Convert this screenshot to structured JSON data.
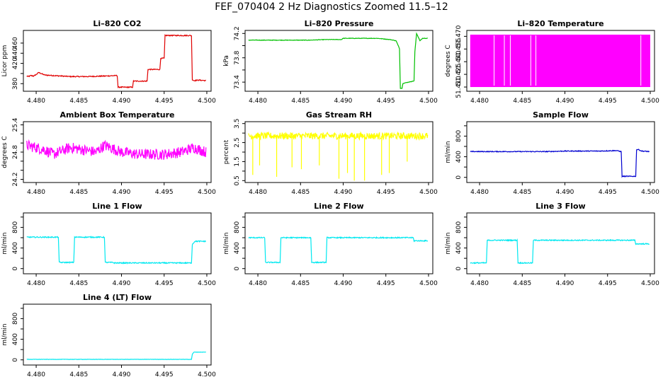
{
  "page_title": "FEF_070404  2 Hz Diagnostics Zoomed 11.5–12",
  "chart_data": [
    {
      "type": "line",
      "title": "Li–820 CO2",
      "ylabel": "Licor ppm",
      "color": "#e00000",
      "xlim": [
        4.4785,
        4.5005
      ],
      "ylim": [
        365,
        485
      ],
      "xticks": [
        4.48,
        4.485,
        4.49,
        4.495,
        4.5
      ],
      "xtick_labels": [
        "4.480",
        "4.485",
        "4.490",
        "4.495",
        "4.500"
      ],
      "yticks": [
        380,
        400,
        420,
        440,
        460
      ],
      "ytick_labels": [
        "380",
        "",
        "420",
        "440",
        "460"
      ],
      "noise": 1,
      "series": [
        {
          "name": "CO2",
          "x": [
            4.4789,
            4.4791,
            4.4794,
            4.4797,
            4.48,
            4.4803,
            4.481,
            4.482,
            4.484,
            4.486,
            4.488,
            4.4895,
            4.4896,
            4.4913,
            4.4914,
            4.493,
            4.4931,
            4.4945,
            4.4946,
            4.495,
            4.4951,
            4.4982,
            4.4983,
            4.4985,
            4.499,
            4.4999
          ],
          "y": [
            395,
            394,
            396,
            395,
            398,
            402,
            397,
            396,
            394,
            394,
            395,
            396,
            373,
            373,
            385,
            385,
            408,
            408,
            430,
            430,
            475,
            475,
            388,
            386,
            387,
            386
          ]
        }
      ]
    },
    {
      "type": "line",
      "title": "Li–820 Pressure",
      "ylabel": "kPa",
      "color": "#00c000",
      "xlim": [
        4.4785,
        4.5005
      ],
      "ylim": [
        73.25,
        74.25
      ],
      "xticks": [
        4.48,
        4.485,
        4.49,
        4.495,
        4.5
      ],
      "xtick_labels": [
        "4.480",
        "4.485",
        "4.490",
        "4.495",
        "4.500"
      ],
      "yticks": [
        73.4,
        73.6,
        73.8,
        74.0,
        74.2
      ],
      "ytick_labels": [
        "73.4",
        "",
        "73.8",
        "",
        "74.2"
      ],
      "noise": 0.004,
      "series": [
        {
          "name": "Pressure",
          "x": [
            4.4789,
            4.48,
            4.482,
            4.486,
            4.488,
            4.4898,
            4.49,
            4.492,
            4.494,
            4.4955,
            4.4962,
            4.4966,
            4.4967,
            4.4969,
            4.497,
            4.4983,
            4.4984,
            4.4986,
            4.499,
            4.4993,
            4.4999
          ],
          "y": [
            74.09,
            74.09,
            74.09,
            74.09,
            74.1,
            74.1,
            74.12,
            74.12,
            74.12,
            74.1,
            74.08,
            73.95,
            73.3,
            73.3,
            73.38,
            73.42,
            73.9,
            74.2,
            74.08,
            74.12,
            74.12
          ]
        }
      ]
    },
    {
      "type": "area",
      "title": "Li–820 Temperature",
      "ylabel": "degrees C",
      "color": "#ff00ff",
      "xlim": [
        4.4785,
        4.5005
      ],
      "ylim": [
        51.405,
        51.477
      ],
      "xticks": [
        4.48,
        4.485,
        4.49,
        4.495,
        4.5
      ],
      "xtick_labels": [
        "4.480",
        "4.485",
        "4.490",
        "4.495",
        "4.500"
      ],
      "yticks": [
        51.41,
        51.425,
        51.44,
        51.455,
        51.47
      ],
      "ytick_labels": [
        "51.410",
        "51.425",
        "51.440",
        "51.455",
        "51.470"
      ],
      "series": [
        {
          "name": "Temperature",
          "x": [
            4.4789,
            4.5
          ],
          "y_low": 51.41,
          "y_high": 51.472,
          "dropouts": [
            4.4817,
            4.4829,
            4.4836,
            4.486,
            4.4866,
            4.4989
          ]
        }
      ]
    },
    {
      "type": "line",
      "title": "Ambient Box Temperature",
      "ylabel": "degrees C",
      "color": "#ff00ff",
      "xlim": [
        4.4785,
        4.5005
      ],
      "ylim": [
        24.13,
        25.47
      ],
      "xticks": [
        4.48,
        4.485,
        4.49,
        4.495,
        4.5
      ],
      "xtick_labels": [
        "4.480",
        "4.485",
        "4.490",
        "4.495",
        "4.500"
      ],
      "yticks": [
        24.2,
        24.4,
        24.6,
        24.8,
        25.0,
        25.2,
        25.4
      ],
      "ytick_labels": [
        "24.2",
        "",
        "",
        "24.8",
        "",
        "",
        "25.4"
      ],
      "noise": 0.12,
      "series": [
        {
          "name": "Ambient",
          "x": [
            4.4789,
            4.48,
            4.481,
            4.482,
            4.484,
            4.487,
            4.488,
            4.49,
            4.492,
            4.495,
            4.497,
            4.4985,
            4.4999
          ],
          "y": [
            24.95,
            24.9,
            24.85,
            24.75,
            24.9,
            24.8,
            24.95,
            24.8,
            24.75,
            24.75,
            24.8,
            24.9,
            24.8
          ]
        }
      ]
    },
    {
      "type": "line",
      "title": "Gas Stream RH",
      "ylabel": "percent",
      "color": "#ffff00",
      "xlim": [
        4.4785,
        4.5005
      ],
      "ylim": [
        0.4,
        3.6
      ],
      "xticks": [
        4.48,
        4.485,
        4.49,
        4.495,
        4.5
      ],
      "xtick_labels": [
        "4.480",
        "4.485",
        "4.490",
        "4.495",
        "4.500"
      ],
      "yticks": [
        0.5,
        1.0,
        1.5,
        2.0,
        2.5,
        3.0,
        3.5
      ],
      "ytick_labels": [
        "0.5",
        "",
        "1.5",
        "",
        "2.5",
        "",
        "3.5"
      ],
      "noise": 0.18,
      "series": [
        {
          "name": "RH",
          "x": [
            4.4789,
            4.4999
          ],
          "y": [
            2.85,
            2.85
          ],
          "dips": [
            [
              4.4794,
              0.8
            ],
            [
              4.4802,
              1.3
            ],
            [
              4.4822,
              0.7
            ],
            [
              4.484,
              1.2
            ],
            [
              4.4851,
              1.1
            ],
            [
              4.4872,
              1.3
            ],
            [
              4.4895,
              0.6
            ],
            [
              4.4905,
              0.9
            ],
            [
              4.4913,
              0.5
            ],
            [
              4.4925,
              0.5
            ],
            [
              4.4945,
              0.8
            ],
            [
              4.4954,
              0.9
            ],
            [
              4.4975,
              1.5
            ]
          ]
        }
      ]
    },
    {
      "type": "line",
      "title": "Sample Flow",
      "ylabel": "ml/min",
      "color": "#0000d0",
      "xlim": [
        4.4785,
        4.5005
      ],
      "ylim": [
        -100,
        1080
      ],
      "xticks": [
        4.48,
        4.485,
        4.49,
        4.495,
        4.5
      ],
      "xtick_labels": [
        "4.480",
        "4.485",
        "4.490",
        "4.495",
        "4.500"
      ],
      "yticks": [
        0,
        200,
        400,
        600,
        800,
        1000
      ],
      "ytick_labels": [
        "0",
        "",
        "400",
        "",
        "800",
        ""
      ],
      "noise": 8,
      "series": [
        {
          "name": "Sample",
          "x": [
            4.4789,
            4.485,
            4.488,
            4.49,
            4.494,
            4.496,
            4.4966,
            4.4967,
            4.4983,
            4.4984,
            4.4986,
            4.499,
            4.4999
          ],
          "y": [
            500,
            500,
            500,
            510,
            510,
            520,
            500,
            20,
            20,
            540,
            540,
            510,
            500
          ]
        }
      ]
    },
    {
      "type": "line",
      "title": "Line 1 Flow",
      "ylabel": "ml/min",
      "color": "#00e8f0",
      "xlim": [
        4.4785,
        4.5005
      ],
      "ylim": [
        -100,
        1080
      ],
      "xticks": [
        4.48,
        4.485,
        4.49,
        4.495,
        4.5
      ],
      "xtick_labels": [
        "4.480",
        "4.485",
        "4.490",
        "4.495",
        "4.500"
      ],
      "yticks": [
        0,
        200,
        400,
        600,
        800,
        1000
      ],
      "ytick_labels": [
        "0",
        "",
        "400",
        "",
        "800",
        ""
      ],
      "noise": 10,
      "series": [
        {
          "name": "Line 1",
          "x": [
            4.4789,
            4.4826,
            4.4827,
            4.4844,
            4.4845,
            4.488,
            4.4881,
            4.489,
            4.4891,
            4.4982,
            4.4983,
            4.4986,
            4.4999
          ],
          "y": [
            610,
            610,
            120,
            120,
            610,
            610,
            120,
            120,
            110,
            110,
            470,
            530,
            530
          ]
        }
      ]
    },
    {
      "type": "line",
      "title": "Line 2 Flow",
      "ylabel": "ml/min",
      "color": "#00e8f0",
      "xlim": [
        4.4785,
        4.5005
      ],
      "ylim": [
        -100,
        1080
      ],
      "xticks": [
        4.48,
        4.485,
        4.49,
        4.495,
        4.5
      ],
      "xtick_labels": [
        "4.480",
        "4.485",
        "4.490",
        "4.495",
        "4.500"
      ],
      "yticks": [
        0,
        200,
        400,
        600,
        800,
        1000
      ],
      "ytick_labels": [
        "0",
        "",
        "400",
        "",
        "800",
        ""
      ],
      "noise": 10,
      "series": [
        {
          "name": "Line 2",
          "x": [
            4.4789,
            4.4808,
            4.4809,
            4.4826,
            4.4827,
            4.4862,
            4.4863,
            4.488,
            4.4881,
            4.4982,
            4.4983,
            4.4999
          ],
          "y": [
            600,
            600,
            120,
            120,
            600,
            600,
            120,
            120,
            600,
            600,
            540,
            540
          ]
        }
      ]
    },
    {
      "type": "line",
      "title": "Line 3 Flow",
      "ylabel": "ml/min",
      "color": "#00e8f0",
      "xlim": [
        4.4785,
        4.5005
      ],
      "ylim": [
        -100,
        1080
      ],
      "xticks": [
        4.48,
        4.485,
        4.49,
        4.495,
        4.5
      ],
      "xtick_labels": [
        "4.480",
        "4.485",
        "4.490",
        "4.495",
        "4.500"
      ],
      "yticks": [
        0,
        200,
        400,
        600,
        800,
        1000
      ],
      "ytick_labels": [
        "0",
        "",
        "400",
        "",
        "800",
        ""
      ],
      "noise": 10,
      "series": [
        {
          "name": "Line 3",
          "x": [
            4.4789,
            4.4808,
            4.4809,
            4.4844,
            4.4845,
            4.4862,
            4.4863,
            4.4982,
            4.4983,
            4.4999
          ],
          "y": [
            110,
            110,
            550,
            550,
            110,
            110,
            550,
            550,
            480,
            480
          ]
        }
      ]
    },
    {
      "type": "line",
      "title": "Line 4 (LT) Flow",
      "ylabel": "ml/min",
      "color": "#00e8f0",
      "xlim": [
        4.4785,
        4.5005
      ],
      "ylim": [
        -100,
        1080
      ],
      "xticks": [
        4.48,
        4.485,
        4.49,
        4.495,
        4.5
      ],
      "xtick_labels": [
        "4.480",
        "4.485",
        "4.490",
        "4.495",
        "4.500"
      ],
      "yticks": [
        0,
        200,
        400,
        600,
        800,
        1000
      ],
      "ytick_labels": [
        "0",
        "",
        "400",
        "",
        "800",
        ""
      ],
      "noise": 3,
      "series": [
        {
          "name": "Line 4",
          "x": [
            4.4789,
            4.4982,
            4.4983,
            4.4985,
            4.4999
          ],
          "y": [
            10,
            10,
            110,
            150,
            150
          ]
        }
      ]
    }
  ]
}
